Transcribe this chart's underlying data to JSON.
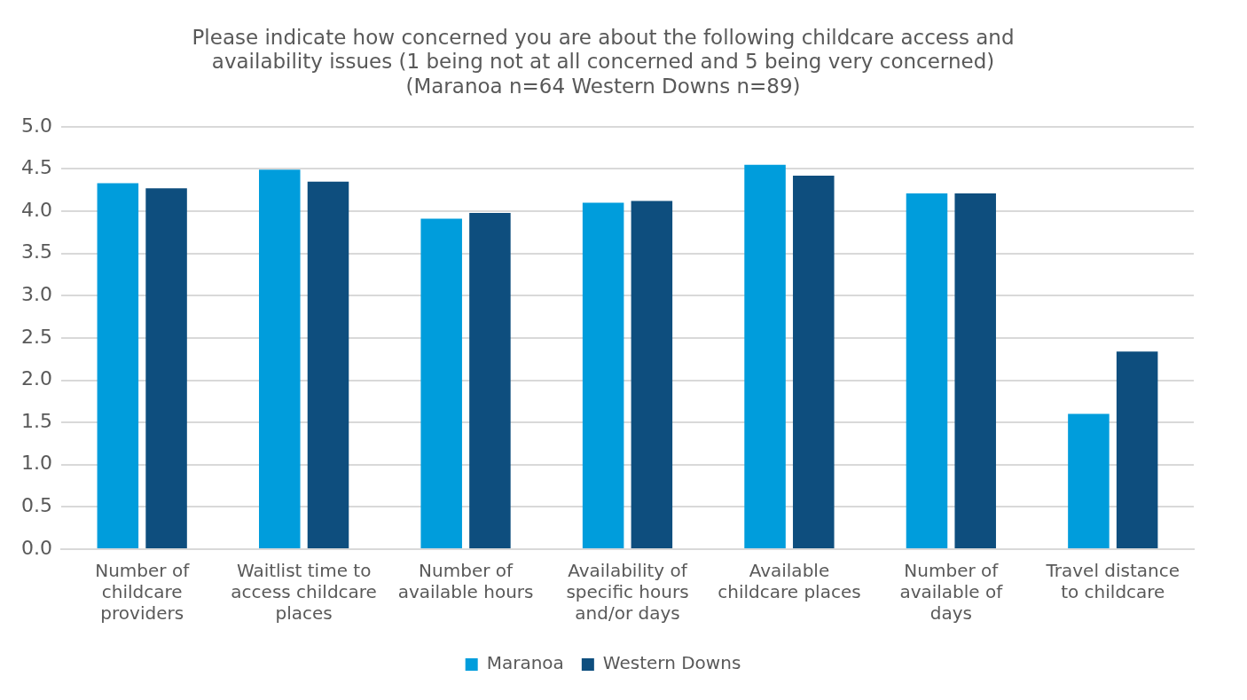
{
  "chart_data": {
    "type": "bar",
    "title": "Please indicate how concerned you are about the following childcare access and\navailability issues (1 being not at all concerned and 5 being very concerned)\n(Maranoa n=64 Western Downs n=89)",
    "categories": [
      "Number of childcare providers",
      "Waitlist time to access childcare places",
      "Number of available hours",
      "Availability of specific hours and/or days",
      "Available childcare places",
      "Number of available of days",
      "Travel distance to childcare"
    ],
    "series": [
      {
        "name": "Maranoa",
        "color": "#009ddc",
        "values": [
          4.33,
          4.49,
          3.91,
          4.1,
          4.55,
          4.21,
          1.6
        ]
      },
      {
        "name": "Western Downs",
        "color": "#0e4e7e",
        "values": [
          4.27,
          4.35,
          3.98,
          4.12,
          4.42,
          4.21,
          2.34
        ]
      }
    ],
    "ylim": [
      0,
      5
    ],
    "yticks": [
      {
        "value": 0,
        "label": "0.0"
      },
      {
        "value": 0.5,
        "label": "0.5"
      },
      {
        "value": 1,
        "label": "1.0"
      },
      {
        "value": 1.5,
        "label": "1.5"
      },
      {
        "value": 2,
        "label": "2.0"
      },
      {
        "value": 2.5,
        "label": "2.5"
      },
      {
        "value": 3,
        "label": "3.0"
      },
      {
        "value": 3.5,
        "label": "3.5"
      },
      {
        "value": 4,
        "label": "4.0"
      },
      {
        "value": 4.5,
        "label": "4.5"
      },
      {
        "value": 5,
        "label": "5.0"
      }
    ],
    "grid": "y",
    "legend": "bottom"
  }
}
